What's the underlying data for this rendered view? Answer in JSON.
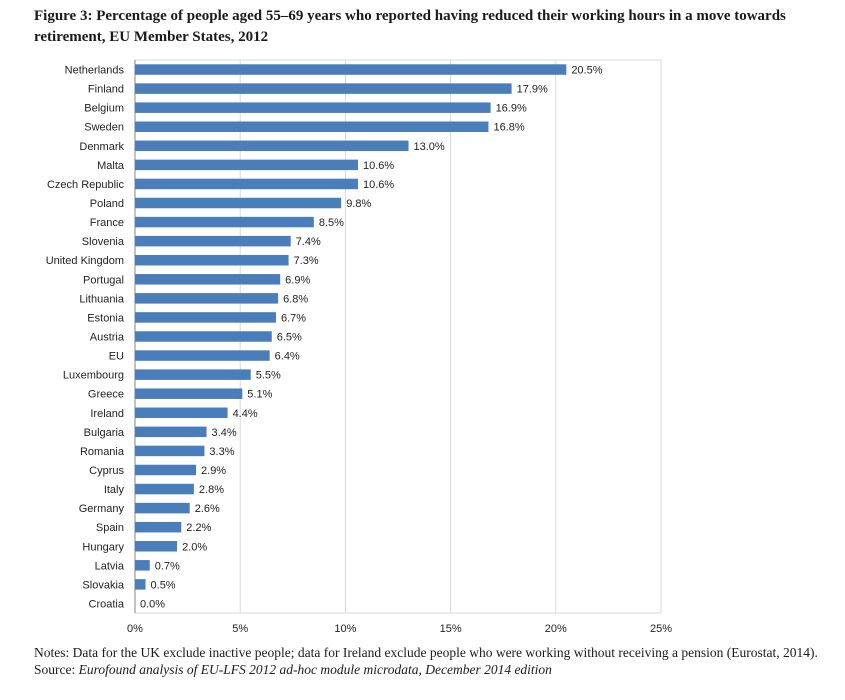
{
  "figure": {
    "title": "Figure 3: Percentage of people aged 55–69 years who reported having reduced their working hours in a move towards retirement, EU Member States, 2012",
    "notes": "Notes: Data for the UK exclude inactive people; data for Ireland exclude people who were working without receiving a pension (Eurostat, 2014).",
    "source_label": "Source:",
    "source_text": "Eurofound analysis of EU-LFS 2012 ad-hoc module microdata, December 2014 edition"
  },
  "chart_data": {
    "type": "bar",
    "orientation": "horizontal",
    "title": "",
    "xlabel": "",
    "ylabel": "",
    "xlim": [
      0,
      25
    ],
    "x_ticks": [
      "0%",
      "5%",
      "10%",
      "15%",
      "20%",
      "25%"
    ],
    "grid": true,
    "legend": "none",
    "bar_color": "#4a7ebb",
    "categories": [
      "Netherlands",
      "Finland",
      "Belgium",
      "Sweden",
      "Denmark",
      "Malta",
      "Czech Republic",
      "Poland",
      "France",
      "Slovenia",
      "United Kingdom",
      "Portugal",
      "Lithuania",
      "Estonia",
      "Austria",
      "EU",
      "Luxembourg",
      "Greece",
      "Ireland",
      "Bulgaria",
      "Romania",
      "Cyprus",
      "Italy",
      "Germany",
      "Spain",
      "Hungary",
      "Latvia",
      "Slovakia",
      "Croatia"
    ],
    "values": [
      20.5,
      17.9,
      16.9,
      16.8,
      13.0,
      10.6,
      10.6,
      9.8,
      8.5,
      7.4,
      7.3,
      6.9,
      6.8,
      6.7,
      6.5,
      6.4,
      5.5,
      5.1,
      4.4,
      3.4,
      3.3,
      2.9,
      2.8,
      2.6,
      2.2,
      2.0,
      0.7,
      0.5,
      0.0
    ],
    "data_labels": [
      "20.5%",
      "17.9%",
      "16.9%",
      "16.8%",
      "13.0%",
      "10.6%",
      "10.6%",
      "9.8%",
      "8.5%",
      "7.4%",
      "7.3%",
      "6.9%",
      "6.8%",
      "6.7%",
      "6.5%",
      "6.4%",
      "5.5%",
      "5.1%",
      "4.4%",
      "3.4%",
      "3.3%",
      "2.9%",
      "2.8%",
      "2.6%",
      "2.2%",
      "2.0%",
      "0.7%",
      "0.5%",
      "0.0%"
    ]
  }
}
